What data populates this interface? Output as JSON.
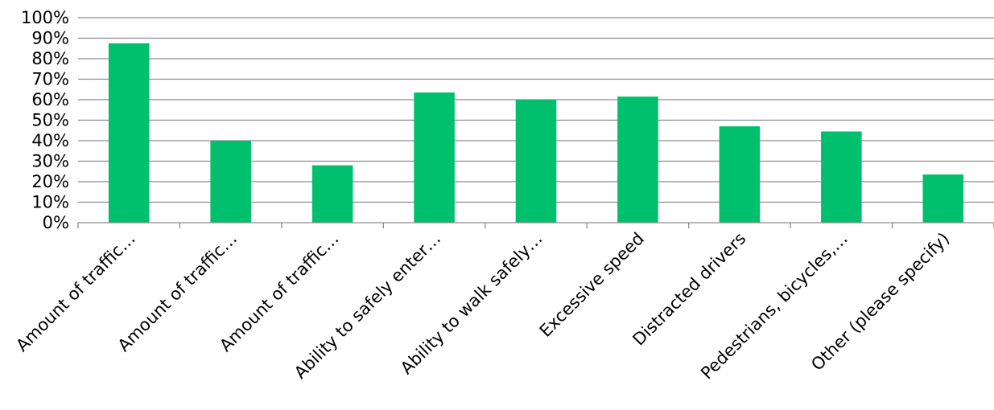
{
  "chart_data": {
    "type": "bar",
    "categories": [
      "Amount of traffic…",
      "Amount of traffic…",
      "Amount of traffic…",
      "Ability to safely enter…",
      "Ability to walk safely…",
      "Excessive speed",
      "Distracted drivers",
      "Pedestrians, bicycles,…",
      "Other (please specify)"
    ],
    "values": [
      87.5,
      40,
      28,
      63.5,
      60,
      61.5,
      47,
      44.5,
      23.5
    ],
    "ylim": [
      0,
      100
    ],
    "yticks": [
      "0%",
      "10%",
      "20%",
      "30%",
      "40%",
      "50%",
      "60%",
      "70%",
      "80%",
      "90%",
      "100%"
    ],
    "grid": true,
    "title": "",
    "xlabel": "",
    "ylabel": "",
    "colors": {
      "bar": "#00c06e",
      "grid": "#8c8c8c",
      "text": "#000000"
    }
  }
}
